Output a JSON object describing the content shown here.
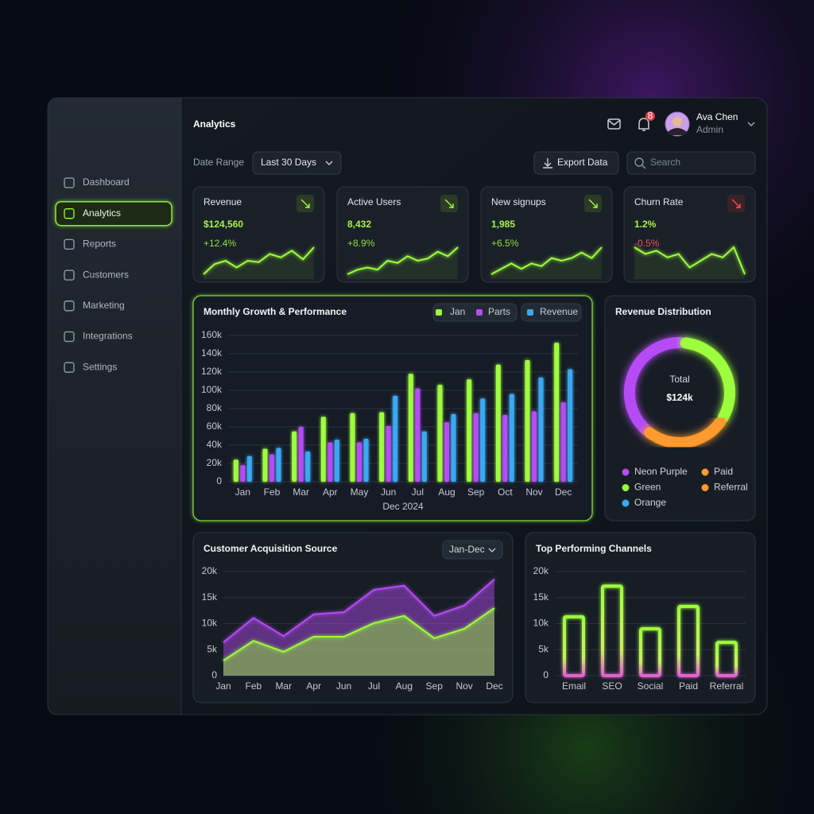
{
  "sidebar": {
    "nav": [
      "Dashboard",
      "Analytics",
      "Reports",
      "Customers",
      "Marketing",
      "Integrations",
      "Settings"
    ],
    "active": 1
  },
  "header": {
    "title": "Analytics",
    "notifications": 8,
    "user": {
      "name": "Ava Chen",
      "role": "Admin"
    }
  },
  "toolbar": {
    "date_range_label": "Date Range",
    "date_range": "Last 30 Days",
    "export": "Export Data",
    "search": "Search"
  },
  "kpis": [
    {
      "label": "Revenue",
      "value": "$124,560",
      "change": "+12.4%",
      "positive": true,
      "trend": [
        3,
        4.5,
        5,
        4,
        5,
        4.8,
        6,
        5.5,
        6.5,
        5.2,
        7
      ]
    },
    {
      "label": "Active Users",
      "value": "8,432",
      "change": "+8.9%",
      "positive": true,
      "trend": [
        2,
        3,
        3.5,
        3,
        5,
        4.5,
        6,
        5,
        5.5,
        7,
        6,
        8
      ]
    },
    {
      "label": "New signups",
      "value": "1,985",
      "change": "+6.5%",
      "positive": true,
      "trend": [
        2,
        3,
        4,
        3,
        4,
        3.5,
        5,
        4.5,
        5,
        6,
        5,
        7
      ]
    },
    {
      "label": "Churn Rate",
      "value": "1.2%",
      "change": "-0.5%",
      "positive": false,
      "trend": [
        6,
        5,
        5.5,
        4.5,
        5,
        3,
        4,
        5,
        4.5,
        6,
        2
      ]
    }
  ],
  "chart_data": [
    {
      "type": "bar",
      "title": "Monthly Growth & Performance",
      "xlabel": "Dec 2024",
      "categories": [
        "Jan",
        "Feb",
        "Mar",
        "Apr",
        "May",
        "Jun",
        "Jul",
        "Aug",
        "Sep",
        "Oct",
        "Nov",
        "Dec"
      ],
      "series": [
        {
          "name": "Jan",
          "color": "#9dff3c",
          "values": [
            24000,
            36000,
            55000,
            71000,
            75000,
            76000,
            118000,
            106000,
            112000,
            128000,
            133000,
            152000
          ]
        },
        {
          "name": "Parts",
          "color": "#b64cf5",
          "values": [
            18000,
            30000,
            60000,
            43000,
            43000,
            61000,
            102000,
            65000,
            75000,
            73000,
            77000,
            87000
          ]
        },
        {
          "name": "Revenue",
          "color": "#3aa8f0",
          "values": [
            28000,
            37000,
            33000,
            46000,
            47000,
            94000,
            55000,
            74000,
            91000,
            96000,
            114000,
            123000
          ]
        }
      ],
      "ylim": [
        0,
        160000
      ],
      "yticks": [
        0,
        {
          "value": 20000,
          "label": "20k"
        },
        {
          "value": 40000,
          "label": "40k"
        },
        {
          "value": 60000,
          "label": "60k"
        },
        {
          "value": 80000,
          "label": "80k"
        },
        {
          "value": 100000,
          "label": "100k"
        },
        {
          "value": 120000,
          "label": "120k"
        },
        {
          "value": 140000,
          "label": "140k"
        },
        {
          "value": 160000,
          "label": "160k"
        }
      ],
      "grid": true
    },
    {
      "type": "pie",
      "title": "Revenue Distribution",
      "center_label": "Total",
      "center_value": "$124k",
      "categories": [
        "Neon Purple",
        "Green",
        "Orange",
        "Paid",
        "Referral"
      ],
      "colors": [
        "#b64cf5",
        "#9dff3c",
        "#3aa8f0",
        "#ff9a2e",
        "#ff9a2e"
      ],
      "values": [
        40,
        33,
        null,
        27,
        null
      ]
    },
    {
      "type": "area",
      "title": "Customer Acquisition Source",
      "filter": "Jan-Dec",
      "categories": [
        "Jan",
        "Feb",
        "Mar",
        "Apr",
        "Jun",
        "Jul",
        "Aug",
        "Sep",
        "Nov",
        "Dec"
      ],
      "series": [
        {
          "color": "#b64cf5",
          "values": [
            6400,
            11100,
            7600,
            11800,
            12200,
            16500,
            17300,
            11500,
            13500,
            18500
          ]
        },
        {
          "color": "#9dff3c",
          "values": [
            2900,
            6700,
            4600,
            7500,
            7500,
            10100,
            11500,
            7200,
            9000,
            13000
          ]
        }
      ],
      "ylim": [
        0,
        20000
      ],
      "yticks": [
        0,
        {
          "value": 5000,
          "label": "5k"
        },
        {
          "value": 10000,
          "label": "10k"
        },
        {
          "value": 15000,
          "label": "15k"
        },
        {
          "value": 20000,
          "label": "20k"
        }
      ],
      "grid": true
    },
    {
      "type": "bar",
      "title": "Top Performing Channels",
      "outline": true,
      "categories": [
        "Email",
        "SEO",
        "Social",
        "Paid",
        "Referral"
      ],
      "values": [
        11300,
        17200,
        9000,
        13300,
        6400
      ],
      "color": "#9dff3c",
      "ylim": [
        0,
        20000
      ],
      "yticks": [
        0,
        {
          "value": 5000,
          "label": "5k"
        },
        {
          "value": 10000,
          "label": "10k"
        },
        {
          "value": 15000,
          "label": "15k"
        },
        {
          "value": 20000,
          "label": "20k"
        }
      ],
      "grid": true
    }
  ]
}
